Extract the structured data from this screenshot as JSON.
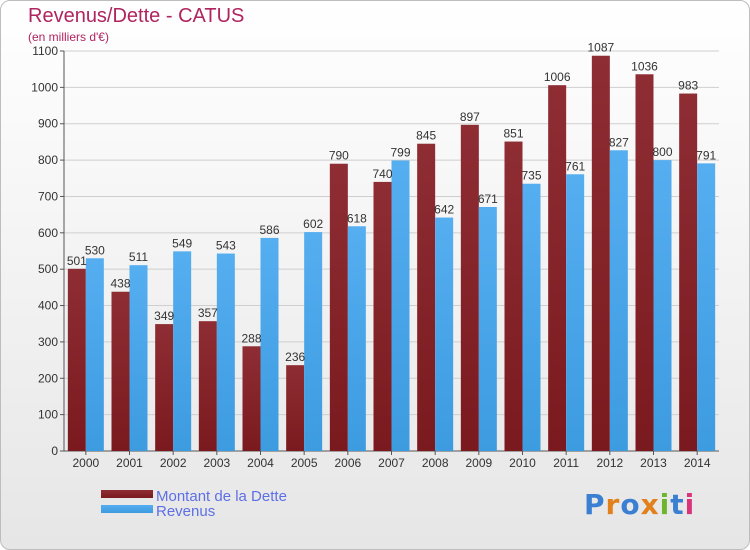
{
  "title": "Revenus/Dette - CATUS",
  "subtitle": "(en milliers d'€)",
  "logo": {
    "text": "Proxiti",
    "colors": [
      "#3b7fd3",
      "#e2811c",
      "#3b7fd3",
      "#e2811c",
      "#6cb52d",
      "#3b7fd3",
      "#d9347a"
    ]
  },
  "colors": {
    "dette": "#7a1a1f",
    "revenus": "#3d9be0",
    "axis": "#555555",
    "grid": "#cfcfcf"
  },
  "chart_data": {
    "type": "bar",
    "categories": [
      "2000",
      "2001",
      "2002",
      "2003",
      "2004",
      "2005",
      "2006",
      "2007",
      "2008",
      "2009",
      "2010",
      "2011",
      "2012",
      "2013",
      "2014"
    ],
    "series": [
      {
        "name": "Montant de la Dette",
        "values": [
          501,
          438,
          349,
          357,
          288,
          236,
          790,
          740,
          845,
          897,
          851,
          1006,
          1087,
          1036,
          983
        ]
      },
      {
        "name": "Revenus",
        "values": [
          530,
          511,
          549,
          543,
          586,
          602,
          618,
          799,
          642,
          671,
          735,
          761,
          827,
          800,
          791
        ]
      }
    ],
    "ylim": [
      0,
      1100
    ],
    "yticks": [
      0,
      100,
      200,
      300,
      400,
      500,
      600,
      700,
      800,
      900,
      1000,
      1100
    ],
    "grid": true,
    "legend_position": "bottom-left"
  }
}
